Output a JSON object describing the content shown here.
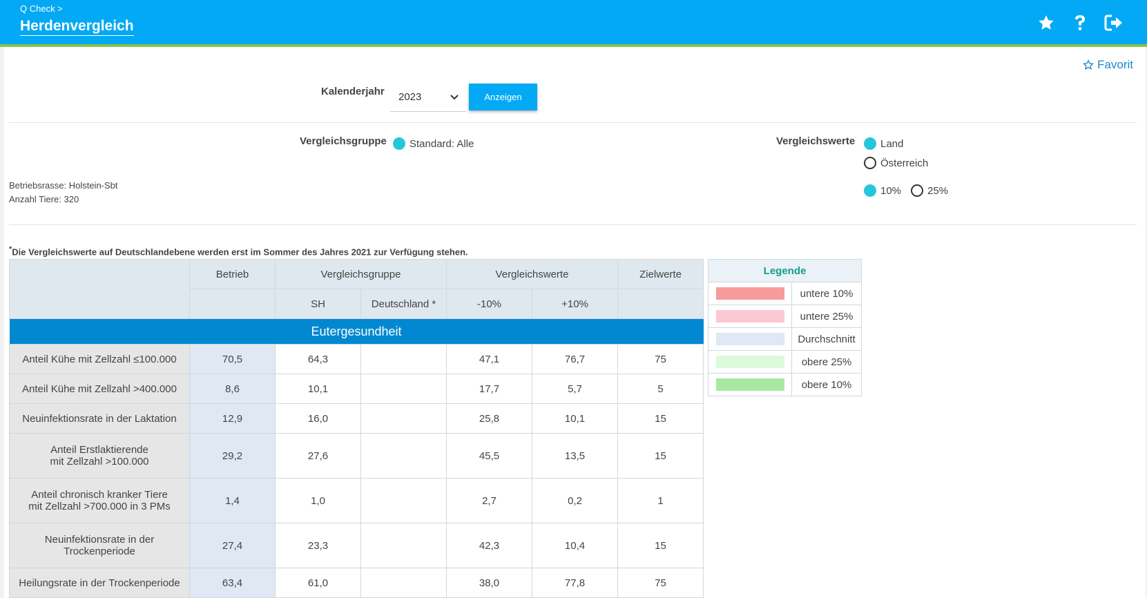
{
  "header": {
    "breadcrumb": "Q Check >",
    "title": "Herdenvergleich",
    "icons": [
      "star-icon",
      "help-icon",
      "logout-icon"
    ]
  },
  "favorit_label": "Favorit",
  "filters": {
    "kalenderjahr_label": "Kalenderjahr",
    "kalenderjahr_value": "2023",
    "anzeigen_label": "Anzeigen",
    "vergleichsgruppe_label": "Vergleichsgruppe",
    "vergleichsgruppe_option": "Standard: Alle",
    "vergleichswerte_label": "Vergleichswerte",
    "vergleichswerte_options": [
      "Land",
      "Österreich"
    ],
    "percent_options": [
      "10%",
      "25%"
    ]
  },
  "farm": {
    "betriebsrasse": "Betriebsrasse: Holstein-Sbt",
    "anzahl_tiere": "Anzahl Tiere: 320"
  },
  "note": "Die Vergleichswerte auf Deutschlandebene werden erst im Sommer des Jahres 2021 zur Verfügung stehen.",
  "note_star": "*",
  "table": {
    "headers": {
      "betrieb": "Betrieb",
      "vergleichsgruppe": "Vergleichsgruppe",
      "vergleichswerte": "Vergleichswerte",
      "zielwerte": "Zielwerte",
      "sh": "SH",
      "deutschland": "Deutschland *",
      "minus10": "-10%",
      "plus10": "+10%"
    },
    "section": "Eutergesundheit",
    "rows": [
      {
        "label1": "Anteil Kühe mit Zellzahl ≤100.000",
        "label2": "",
        "betrieb": "70,5",
        "sh": "64,3",
        "de": "",
        "m10": "47,1",
        "p10": "76,7",
        "ziel": "75"
      },
      {
        "label1": "Anteil Kühe mit Zellzahl >400.000",
        "label2": "",
        "betrieb": "8,6",
        "sh": "10,1",
        "de": "",
        "m10": "17,7",
        "p10": "5,7",
        "ziel": "5"
      },
      {
        "label1": "Neuinfektionsrate in der Laktation",
        "label2": "",
        "betrieb": "12,9",
        "sh": "16,0",
        "de": "",
        "m10": "25,8",
        "p10": "10,1",
        "ziel": "15"
      },
      {
        "label1": "Anteil Erstlaktierende",
        "label2": "mit Zellzahl >100.000",
        "betrieb": "29,2",
        "sh": "27,6",
        "de": "",
        "m10": "45,5",
        "p10": "13,5",
        "ziel": "15"
      },
      {
        "label1": "Anteil chronisch kranker Tiere",
        "label2": "mit Zellzahl >700.000 in 3 PMs",
        "betrieb": "1,4",
        "sh": "1,0",
        "de": "",
        "m10": "2,7",
        "p10": "0,2",
        "ziel": "1"
      },
      {
        "label1": "Neuinfektionsrate in der",
        "label2": "Trockenperiode",
        "betrieb": "27,4",
        "sh": "23,3",
        "de": "",
        "m10": "42,3",
        "p10": "10,4",
        "ziel": "15"
      },
      {
        "label1": "Heilungsrate in der Trockenperiode",
        "label2": "",
        "betrieb": "63,4",
        "sh": "61,0",
        "de": "",
        "m10": "38,0",
        "p10": "77,8",
        "ziel": "75"
      }
    ]
  },
  "legend": {
    "title": "Legende",
    "items": [
      {
        "label": "untere 10%",
        "color": "#f89b9b"
      },
      {
        "label": "untere 25%",
        "color": "#fcc9d2"
      },
      {
        "label": "Durchschnitt",
        "color": "#dfe8f3"
      },
      {
        "label": "obere 25%",
        "color": "#dcfbdc"
      },
      {
        "label": "obere 10%",
        "color": "#a8e8a2"
      }
    ]
  }
}
